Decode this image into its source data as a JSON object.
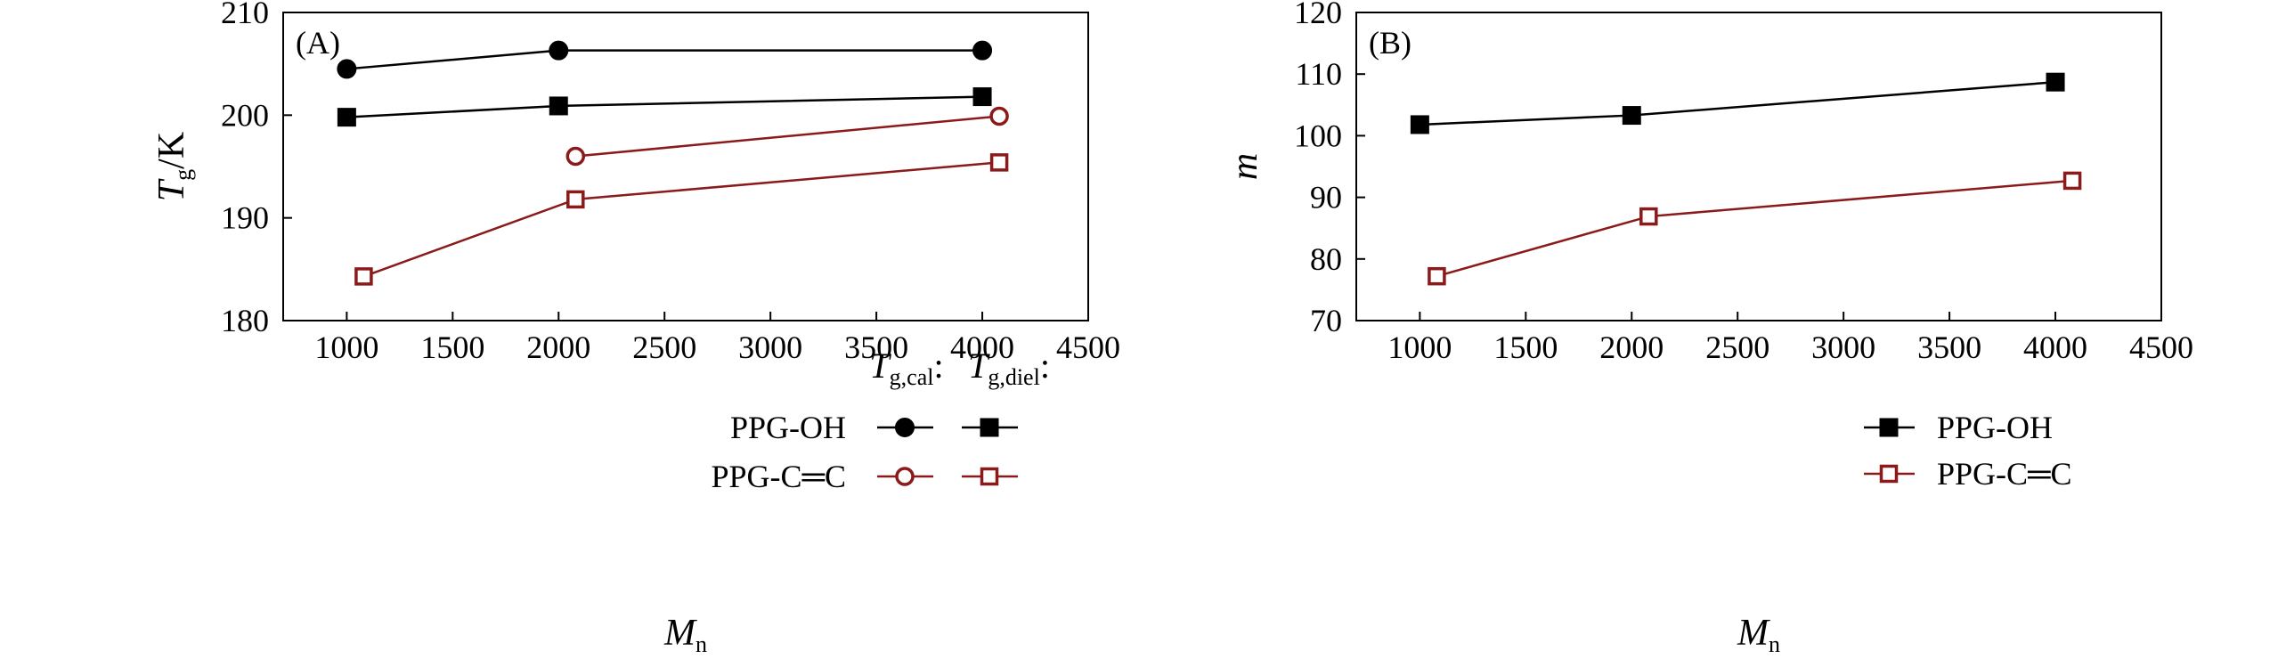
{
  "colors": {
    "black": "#000000",
    "dark_red": "#8b1a1a"
  },
  "chart_data": [
    {
      "panel": "(A)",
      "type": "line",
      "xlabel": {
        "main": "M",
        "sub": "n"
      },
      "ylabel": {
        "main": "T",
        "sub": "g",
        "suffix": "/K"
      },
      "xlim": [
        700,
        4500
      ],
      "ylim": [
        180,
        210
      ],
      "xticks": [
        1000,
        1500,
        2000,
        2500,
        3000,
        3500,
        4000,
        4500
      ],
      "yticks": [
        180,
        190,
        200,
        210
      ],
      "legend": {
        "placement": "bottom-right",
        "col_headers": [
          {
            "main": "T",
            "sub": "g,cal",
            "colon": ":"
          },
          {
            "main": "T",
            "sub": "g,diel",
            "colon": ":"
          }
        ],
        "rows": [
          {
            "label": "PPG-OH",
            "color": "#000000",
            "cal_marker": "filled-circle",
            "diel_marker": "filled-square"
          },
          {
            "label": "PPG-C═C",
            "color": "#8b1a1a",
            "cal_marker": "open-circle",
            "diel_marker": "open-square"
          }
        ]
      },
      "series": [
        {
          "name": "PPG-OH Tg,cal",
          "marker": "filled-circle",
          "color": "#000000",
          "x": [
            1000,
            2000,
            4000
          ],
          "y": [
            204.5,
            206.3,
            206.3
          ]
        },
        {
          "name": "PPG-OH Tg,diel",
          "marker": "filled-square",
          "color": "#000000",
          "x": [
            1000,
            2000,
            4000
          ],
          "y": [
            199.8,
            200.9,
            201.8
          ]
        },
        {
          "name": "PPG-C═C Tg,cal",
          "marker": "open-circle",
          "color": "#8b1a1a",
          "x": [
            2080,
            4080
          ],
          "y": [
            196.0,
            199.9
          ]
        },
        {
          "name": "PPG-C═C Tg,diel",
          "marker": "open-square",
          "color": "#8b1a1a",
          "x": [
            1080,
            2080,
            4080
          ],
          "y": [
            184.3,
            191.8,
            195.4
          ]
        }
      ]
    },
    {
      "panel": "(B)",
      "type": "line",
      "xlabel": {
        "main": "M",
        "sub": "n"
      },
      "ylabel": {
        "main": "m",
        "sub": "",
        "suffix": ""
      },
      "xlim": [
        700,
        4500
      ],
      "ylim": [
        70,
        120
      ],
      "xticks": [
        1000,
        1500,
        2000,
        2500,
        3000,
        3500,
        4000,
        4500
      ],
      "yticks": [
        70,
        80,
        90,
        100,
        110,
        120
      ],
      "legend": {
        "placement": "bottom-right",
        "rows": [
          {
            "label": "PPG-OH",
            "color": "#000000",
            "marker": "filled-square"
          },
          {
            "label": "PPG-C═C",
            "color": "#8b1a1a",
            "marker": "open-square"
          }
        ]
      },
      "series": [
        {
          "name": "PPG-OH",
          "marker": "filled-square",
          "color": "#000000",
          "x": [
            1000,
            2000,
            4000
          ],
          "y": [
            101.8,
            103.3,
            108.7
          ]
        },
        {
          "name": "PPG-C═C",
          "marker": "open-square",
          "color": "#8b1a1a",
          "x": [
            1080,
            2080,
            4080
          ],
          "y": [
            77.2,
            86.9,
            92.7
          ]
        }
      ]
    }
  ]
}
